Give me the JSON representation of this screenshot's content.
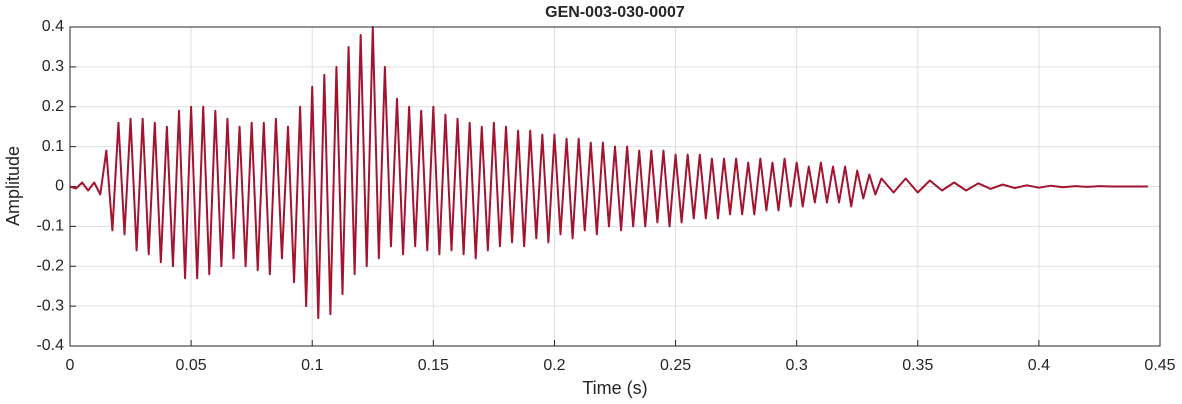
{
  "chart_data": {
    "type": "line",
    "title": "GEN-003-030-0007",
    "xlabel": "Time (s)",
    "ylabel": "Amplitude",
    "color": "#a2142f",
    "grid": true,
    "xlim": [
      0,
      0.45
    ],
    "ylim": [
      -0.4,
      0.4
    ],
    "xticks": [
      0,
      0.05,
      0.1,
      0.15,
      0.2,
      0.25,
      0.3,
      0.35,
      0.4,
      0.45
    ],
    "yticks": [
      -0.4,
      -0.3,
      -0.2,
      -0.1,
      0,
      0.1,
      0.2,
      0.3,
      0.4
    ],
    "x": [
      0,
      0.0025,
      0.005,
      0.0075,
      0.01,
      0.0125,
      0.015,
      0.0175,
      0.02,
      0.0225,
      0.025,
      0.0275,
      0.03,
      0.0325,
      0.035,
      0.0375,
      0.04,
      0.0425,
      0.045,
      0.0475,
      0.05,
      0.0525,
      0.055,
      0.0575,
      0.06,
      0.0625,
      0.065,
      0.0675,
      0.07,
      0.0725,
      0.075,
      0.0775,
      0.08,
      0.0825,
      0.085,
      0.0875,
      0.09,
      0.0925,
      0.095,
      0.0975,
      0.1,
      0.1025,
      0.105,
      0.1075,
      0.11,
      0.1125,
      0.115,
      0.1175,
      0.12,
      0.1225,
      0.125,
      0.1275,
      0.13,
      0.1325,
      0.135,
      0.1375,
      0.14,
      0.1425,
      0.145,
      0.1475,
      0.15,
      0.1525,
      0.155,
      0.1575,
      0.16,
      0.1625,
      0.165,
      0.1675,
      0.17,
      0.1725,
      0.175,
      0.1775,
      0.18,
      0.1825,
      0.185,
      0.1875,
      0.19,
      0.1925,
      0.195,
      0.1975,
      0.2,
      0.2025,
      0.205,
      0.2075,
      0.21,
      0.2125,
      0.215,
      0.2175,
      0.22,
      0.2225,
      0.225,
      0.2275,
      0.23,
      0.2325,
      0.235,
      0.2375,
      0.24,
      0.2425,
      0.245,
      0.2475,
      0.25,
      0.2525,
      0.255,
      0.2575,
      0.26,
      0.2625,
      0.265,
      0.2675,
      0.27,
      0.2725,
      0.275,
      0.2775,
      0.28,
      0.2825,
      0.285,
      0.2875,
      0.29,
      0.2925,
      0.295,
      0.2975,
      0.3,
      0.3025,
      0.305,
      0.3075,
      0.31,
      0.3125,
      0.315,
      0.3175,
      0.32,
      0.3225,
      0.325,
      0.3275,
      0.33,
      0.3325,
      0.335,
      0.34,
      0.345,
      0.35,
      0.355,
      0.36,
      0.365,
      0.37,
      0.375,
      0.38,
      0.385,
      0.39,
      0.395,
      0.4,
      0.405,
      0.41,
      0.415,
      0.42,
      0.425,
      0.43,
      0.435,
      0.44,
      0.445
    ],
    "values": [
      0,
      -0.005,
      0.01,
      -0.01,
      0.01,
      -0.02,
      0.09,
      -0.11,
      0.16,
      -0.12,
      0.17,
      -0.16,
      0.17,
      -0.17,
      0.16,
      -0.19,
      0.15,
      -0.2,
      0.19,
      -0.23,
      0.2,
      -0.23,
      0.2,
      -0.22,
      0.19,
      -0.2,
      0.17,
      -0.18,
      0.15,
      -0.2,
      0.16,
      -0.21,
      0.16,
      -0.22,
      0.17,
      -0.18,
      0.15,
      -0.24,
      0.2,
      -0.3,
      0.25,
      -0.33,
      0.28,
      -0.32,
      0.3,
      -0.27,
      0.35,
      -0.22,
      0.38,
      -0.2,
      0.4,
      -0.18,
      0.3,
      -0.15,
      0.22,
      -0.17,
      0.2,
      -0.15,
      0.19,
      -0.16,
      0.2,
      -0.17,
      0.18,
      -0.16,
      0.17,
      -0.17,
      0.16,
      -0.18,
      0.15,
      -0.16,
      0.16,
      -0.15,
      0.15,
      -0.14,
      0.14,
      -0.15,
      0.14,
      -0.13,
      0.13,
      -0.14,
      0.13,
      -0.12,
      0.12,
      -0.13,
      0.12,
      -0.11,
      0.11,
      -0.12,
      0.11,
      -0.1,
      0.1,
      -0.11,
      0.1,
      -0.1,
      0.09,
      -0.1,
      0.09,
      -0.09,
      0.09,
      -0.1,
      0.08,
      -0.09,
      0.08,
      -0.08,
      0.08,
      -0.08,
      0.07,
      -0.08,
      0.07,
      -0.07,
      0.07,
      -0.07,
      0.06,
      -0.07,
      0.07,
      -0.06,
      0.06,
      -0.06,
      0.07,
      -0.05,
      0.06,
      -0.05,
      0.05,
      -0.04,
      0.06,
      -0.04,
      0.05,
      -0.04,
      0.05,
      -0.05,
      0.04,
      -0.03,
      0.03,
      -0.02,
      0.02,
      -0.015,
      0.02,
      -0.015,
      0.015,
      -0.01,
      0.01,
      -0.01,
      0.008,
      -0.006,
      0.005,
      -0.004,
      0.003,
      -0.003,
      0.002,
      -0.002,
      0.001,
      -0.001,
      0.001,
      0,
      0,
      0,
      0
    ]
  }
}
